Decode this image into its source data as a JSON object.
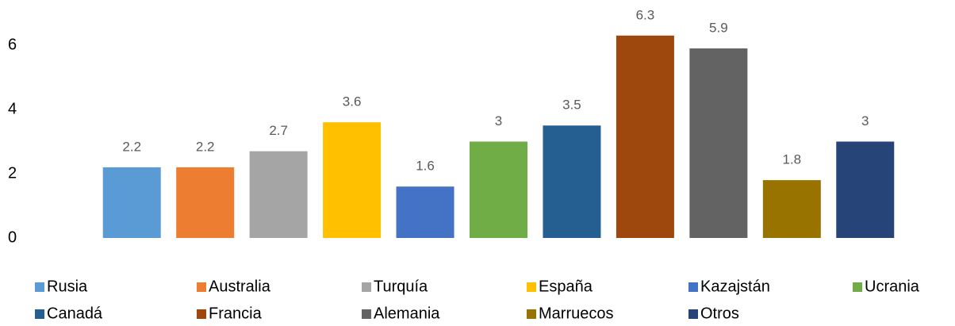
{
  "chart_data": {
    "type": "bar",
    "series": [
      {
        "name": "Rusia",
        "color": "#5b9bd5",
        "values": [
          2.2
        ]
      },
      {
        "name": "Australia",
        "color": "#ed7d31",
        "values": [
          2.2
        ]
      },
      {
        "name": "Turquía",
        "color": "#a5a5a5",
        "values": [
          2.7
        ]
      },
      {
        "name": "España",
        "color": "#ffc000",
        "values": [
          3.6
        ]
      },
      {
        "name": "Kazajstán",
        "color": "#4472c4",
        "values": [
          1.6
        ]
      },
      {
        "name": "Ucrania",
        "color": "#70ad47",
        "values": [
          3
        ]
      },
      {
        "name": "Canadá",
        "color": "#255e91",
        "values": [
          3.5
        ]
      },
      {
        "name": "Francia",
        "color": "#9e480e",
        "values": [
          6.3
        ]
      },
      {
        "name": "Alemania",
        "color": "#636363",
        "values": [
          5.9
        ]
      },
      {
        "name": "Marruecos",
        "color": "#997300",
        "values": [
          1.8
        ]
      },
      {
        "name": "Otros",
        "color": "#264478",
        "values": [
          3
        ]
      }
    ],
    "ylim": [
      0,
      7
    ],
    "yticks": [
      0,
      2,
      4,
      6
    ],
    "grid": false,
    "legend": "bottom"
  }
}
